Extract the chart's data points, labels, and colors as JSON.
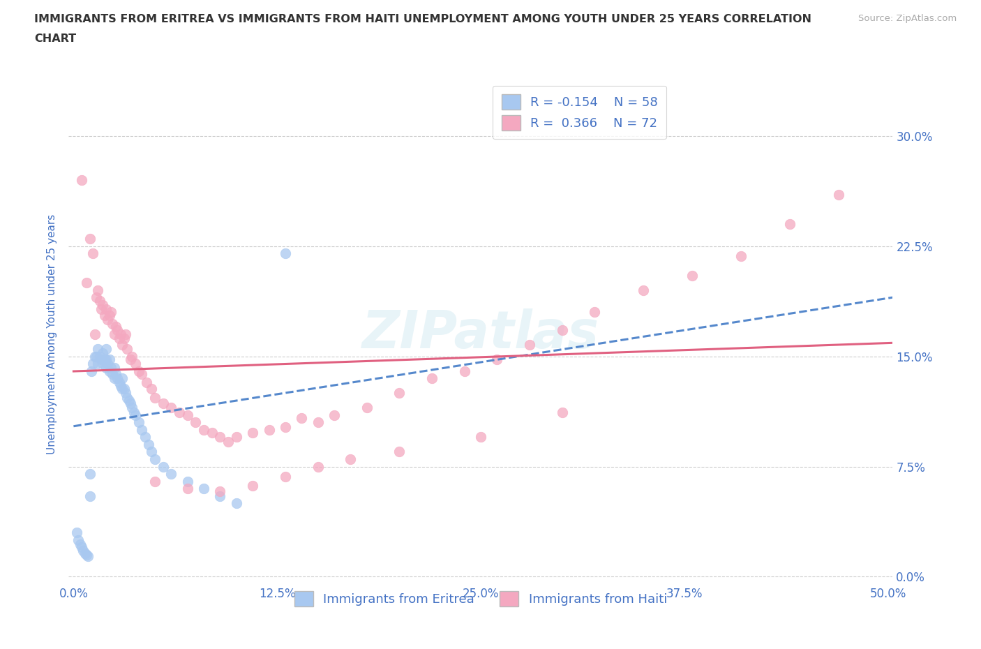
{
  "title_line1": "IMMIGRANTS FROM ERITREA VS IMMIGRANTS FROM HAITI UNEMPLOYMENT AMONG YOUTH UNDER 25 YEARS CORRELATION",
  "title_line2": "CHART",
  "source_text": "Source: ZipAtlas.com",
  "ylabel": "Unemployment Among Youth under 25 years",
  "xlim": [
    -0.003,
    0.503
  ],
  "ylim": [
    -0.005,
    0.335
  ],
  "yticks": [
    0.0,
    0.075,
    0.15,
    0.225,
    0.3
  ],
  "ytick_labels": [
    "0.0%",
    "7.5%",
    "15.0%",
    "22.5%",
    "30.0%"
  ],
  "xticks": [
    0.0,
    0.125,
    0.25,
    0.375,
    0.5
  ],
  "xtick_labels": [
    "0.0%",
    "12.5%",
    "25.0%",
    "37.5%",
    "50.0%"
  ],
  "background_color": "#ffffff",
  "grid_color": "#cccccc",
  "watermark": "ZIPatlas",
  "legend_r1": "R = -0.154",
  "legend_n1": "N = 58",
  "legend_r2": "R =  0.366",
  "legend_n2": "N = 72",
  "color_eritrea": "#a8c8f0",
  "color_haiti": "#f4a8c0",
  "trendline_eritrea": "#5588cc",
  "trendline_haiti": "#e06080",
  "axis_color": "#4472c4",
  "eritrea_x": [
    0.002,
    0.003,
    0.004,
    0.005,
    0.006,
    0.007,
    0.008,
    0.009,
    0.01,
    0.01,
    0.011,
    0.012,
    0.013,
    0.014,
    0.015,
    0.015,
    0.016,
    0.017,
    0.018,
    0.018,
    0.019,
    0.02,
    0.02,
    0.02,
    0.021,
    0.022,
    0.022,
    0.023,
    0.024,
    0.025,
    0.025,
    0.026,
    0.027,
    0.028,
    0.029,
    0.03,
    0.03,
    0.031,
    0.032,
    0.033,
    0.034,
    0.035,
    0.036,
    0.037,
    0.038,
    0.04,
    0.042,
    0.044,
    0.046,
    0.048,
    0.05,
    0.055,
    0.06,
    0.07,
    0.08,
    0.09,
    0.1,
    0.13
  ],
  "eritrea_y": [
    0.03,
    0.025,
    0.022,
    0.02,
    0.018,
    0.016,
    0.015,
    0.014,
    0.055,
    0.07,
    0.14,
    0.145,
    0.15,
    0.15,
    0.145,
    0.155,
    0.15,
    0.148,
    0.145,
    0.152,
    0.148,
    0.142,
    0.148,
    0.155,
    0.145,
    0.14,
    0.148,
    0.142,
    0.138,
    0.135,
    0.142,
    0.138,
    0.135,
    0.132,
    0.13,
    0.128,
    0.135,
    0.128,
    0.125,
    0.122,
    0.12,
    0.118,
    0.115,
    0.112,
    0.11,
    0.105,
    0.1,
    0.095,
    0.09,
    0.085,
    0.08,
    0.075,
    0.07,
    0.065,
    0.06,
    0.055,
    0.05,
    0.22
  ],
  "haiti_x": [
    0.005,
    0.008,
    0.01,
    0.012,
    0.013,
    0.014,
    0.015,
    0.016,
    0.017,
    0.018,
    0.019,
    0.02,
    0.021,
    0.022,
    0.023,
    0.024,
    0.025,
    0.026,
    0.027,
    0.028,
    0.029,
    0.03,
    0.031,
    0.032,
    0.033,
    0.035,
    0.036,
    0.038,
    0.04,
    0.042,
    0.045,
    0.048,
    0.05,
    0.055,
    0.06,
    0.065,
    0.07,
    0.075,
    0.08,
    0.085,
    0.09,
    0.095,
    0.1,
    0.11,
    0.12,
    0.13,
    0.14,
    0.15,
    0.16,
    0.18,
    0.2,
    0.22,
    0.24,
    0.26,
    0.28,
    0.3,
    0.32,
    0.35,
    0.38,
    0.41,
    0.44,
    0.47,
    0.05,
    0.07,
    0.09,
    0.11,
    0.13,
    0.15,
    0.17,
    0.2,
    0.25,
    0.3
  ],
  "haiti_y": [
    0.27,
    0.2,
    0.23,
    0.22,
    0.165,
    0.19,
    0.195,
    0.188,
    0.182,
    0.185,
    0.178,
    0.182,
    0.175,
    0.178,
    0.18,
    0.172,
    0.165,
    0.17,
    0.168,
    0.162,
    0.165,
    0.158,
    0.162,
    0.165,
    0.155,
    0.148,
    0.15,
    0.145,
    0.14,
    0.138,
    0.132,
    0.128,
    0.122,
    0.118,
    0.115,
    0.112,
    0.11,
    0.105,
    0.1,
    0.098,
    0.095,
    0.092,
    0.095,
    0.098,
    0.1,
    0.102,
    0.108,
    0.105,
    0.11,
    0.115,
    0.125,
    0.135,
    0.14,
    0.148,
    0.158,
    0.168,
    0.18,
    0.195,
    0.205,
    0.218,
    0.24,
    0.26,
    0.065,
    0.06,
    0.058,
    0.062,
    0.068,
    0.075,
    0.08,
    0.085,
    0.095,
    0.112
  ]
}
